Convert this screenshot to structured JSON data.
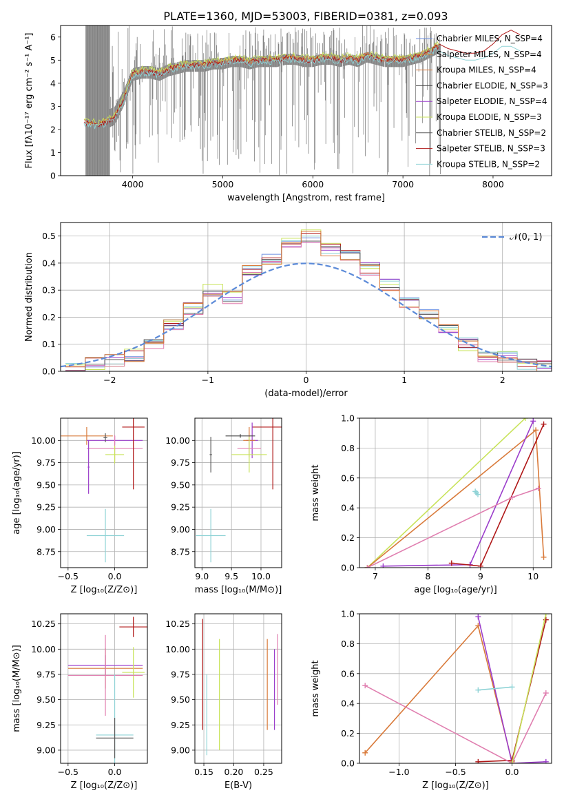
{
  "colors": {
    "chabrier_miles": "#6a8ee0",
    "salpeter_miles": "#e38a2d",
    "kroupa_miles": "#d97a3a",
    "chabrier_elodie": "#444444",
    "salpeter_elodie": "#9b3ecb",
    "kroupa_elodie": "#c8e35a",
    "chabrier_stelib": "#5a5a5a",
    "salpeter_stelib": "#b01818",
    "kroupa_stelib": "#8fd3d6",
    "pink": "#e07fb0",
    "gray": "#808080",
    "normal": "#5b8ad8"
  },
  "chart_data": [
    {
      "id": "spectrum",
      "type": "line",
      "title": "PLATE=1360, MJD=53003, FIBERID=0381, z=0.093",
      "xlabel": "wavelength [Angstrom, rest frame]",
      "ylabel": "Flux [fλ10⁻¹⁷ erg cm⁻² s⁻¹ A⁻¹]",
      "xlim": [
        3200,
        8650
      ],
      "ylim": [
        0,
        6.5
      ],
      "xticks": [
        4000,
        5000,
        6000,
        7000,
        8000
      ],
      "yticks": [
        0,
        1,
        2,
        3,
        4,
        5,
        6
      ],
      "grid": false,
      "legend_position": "top-right",
      "legend": [
        "Chabrier MILES, N_SSP=4",
        "Salpeter MILES, N_SSP=4",
        "Kroupa MILES, N_SSP=4",
        "Chabrier ELODIE, N_SSP=3",
        "Salpeter ELODIE, N_SSP=4",
        "Kroupa ELODIE, N_SSP=3",
        "Chabrier STELIB, N_SSP=2",
        "Salpeter STELIB, N_SSP=3",
        "Kroupa STELIB, N_SSP=2"
      ],
      "model_continuum": {
        "x": [
          3460,
          3600,
          3700,
          3800,
          3900,
          4000,
          4100,
          4200,
          4300,
          4400,
          4500,
          4600,
          4700,
          4800,
          4900,
          5000,
          5100,
          5200,
          5300,
          5400,
          5500,
          5600,
          5700,
          5800,
          5900,
          6000,
          6100,
          6200,
          6300,
          6400,
          6500,
          6600,
          6700,
          6800,
          6900,
          7000,
          7100,
          7200,
          7300,
          7400
        ],
        "y": [
          2.3,
          2.2,
          2.3,
          2.5,
          3.3,
          4.4,
          4.5,
          4.5,
          4.4,
          4.6,
          4.7,
          4.8,
          4.8,
          4.8,
          4.9,
          4.9,
          5.0,
          5.0,
          4.9,
          5.0,
          5.0,
          5.0,
          5.1,
          5.1,
          5.0,
          5.0,
          5.1,
          5.1,
          5.0,
          5.1,
          5.0,
          5.2,
          5.1,
          5.0,
          5.0,
          5.0,
          5.1,
          5.2,
          5.4,
          5.6
        ]
      },
      "red_extension": {
        "x": [
          7400,
          7500,
          7600,
          7700,
          7800,
          7900,
          8000,
          8100,
          8200,
          8300
        ],
        "y": [
          5.7,
          5.5,
          5.4,
          5.3,
          5.3,
          5.4,
          5.7,
          6.1,
          6.3,
          6.1
        ]
      },
      "cyan_extension": {
        "x": [
          7400,
          7500,
          7600,
          7700,
          7800,
          7900,
          8000,
          8100,
          8200,
          8300
        ],
        "y": [
          5.4,
          5.2,
          5.1,
          5.0,
          5.0,
          5.1,
          5.3,
          5.6,
          5.6,
          5.4
        ]
      }
    },
    {
      "id": "residuals",
      "type": "line",
      "xlabel": "(data-model)/error",
      "ylabel": "Normed distribution",
      "xlim": [
        -2.5,
        2.5
      ],
      "ylim": [
        0,
        0.55
      ],
      "xticks": [
        -2,
        -1,
        0,
        1,
        2
      ],
      "yticks": [
        0.0,
        0.1,
        0.2,
        0.3,
        0.4,
        0.5
      ],
      "grid": true,
      "legend_position": "top-right",
      "legend": [
        "𝒩(0, 1)"
      ],
      "histogram_centers": [
        -2.35,
        -2.15,
        -1.95,
        -1.75,
        -1.55,
        -1.35,
        -1.15,
        -0.95,
        -0.75,
        -0.55,
        -0.35,
        -0.15,
        0.05,
        0.25,
        0.45,
        0.65,
        0.85,
        1.05,
        1.25,
        1.45,
        1.65,
        1.85,
        2.05,
        2.25,
        2.45
      ],
      "histogram_values": [
        0.01,
        0.03,
        0.04,
        0.06,
        0.1,
        0.17,
        0.23,
        0.3,
        0.27,
        0.38,
        0.41,
        0.47,
        0.5,
        0.45,
        0.43,
        0.38,
        0.32,
        0.26,
        0.21,
        0.16,
        0.1,
        0.06,
        0.05,
        0.03,
        0.02
      ]
    },
    {
      "id": "age_vs_Z",
      "type": "scatter",
      "xlabel": "Z [log₁₀(Z/Z⊙)]",
      "ylabel": "age  [log₁₀(age/yr)]",
      "xlim": [
        -0.58,
        0.35
      ],
      "ylim": [
        8.57,
        10.25
      ],
      "xticks": [
        -0.5,
        0.0
      ],
      "yticks": [
        8.75,
        9.0,
        9.25,
        9.5,
        9.75,
        10.0
      ],
      "grid": true,
      "points": [
        {
          "color": "kroupa_miles",
          "x": -0.3,
          "y": 10.05,
          "xerr": 0.28,
          "yerr": 0.1
        },
        {
          "color": "salpeter_elodie",
          "x": 0.0,
          "y": 10.0,
          "xerr": 0.3,
          "yerr": 0.05
        },
        {
          "color": "pink",
          "x": 0.0,
          "y": 9.91,
          "xerr": 0.3,
          "yerr": 0.15
        },
        {
          "color": "kroupa_elodie",
          "x": 0.0,
          "y": 9.84,
          "xerr": 0.1,
          "yerr": 0.1
        },
        {
          "color": "salpeter_stelib",
          "x": 0.2,
          "y": 10.15,
          "xerr": 0.12,
          "yerr": 0.7
        },
        {
          "color": "kroupa_stelib",
          "x": -0.1,
          "y": 8.93,
          "xerr": 0.2,
          "yerr": 0.3
        },
        {
          "color": "chabrier_stelib",
          "x": -0.1,
          "y": 10.03,
          "xerr": 0.02,
          "yerr": 0.05
        },
        {
          "color": "salpeter_elodie",
          "x": -0.28,
          "y": 9.7,
          "xerr": 0.01,
          "yerr": 0.3
        }
      ]
    },
    {
      "id": "age_vs_mass",
      "type": "scatter",
      "xlabel": "mass [log₁₀(M/M⊙)]",
      "ylabel": "",
      "xlim": [
        8.88,
        10.35
      ],
      "ylim": [
        8.57,
        10.25
      ],
      "xticks": [
        9.0,
        9.5,
        10.0
      ],
      "yticks": [
        8.75,
        9.0,
        9.25,
        9.5,
        9.75,
        10.0
      ],
      "grid": true,
      "points": [
        {
          "color": "salpeter_stelib",
          "x": 10.2,
          "y": 10.15,
          "xerr": 0.35,
          "yerr": 0.7
        },
        {
          "color": "salpeter_elodie",
          "x": 9.85,
          "y": 10.0,
          "xerr": 0.1,
          "yerr": 0.2
        },
        {
          "color": "kroupa_miles",
          "x": 9.8,
          "y": 10.0,
          "xerr": 0.1,
          "yerr": 0.15
        },
        {
          "color": "pink",
          "x": 9.8,
          "y": 9.91,
          "xerr": 0.2,
          "yerr": 0.1
        },
        {
          "color": "kroupa_elodie",
          "x": 9.8,
          "y": 9.84,
          "xerr": 0.3,
          "yerr": 0.2
        },
        {
          "color": "chabrier_stelib",
          "x": 9.15,
          "y": 9.84,
          "xerr": 0.02,
          "yerr": 0.2
        },
        {
          "color": "kroupa_stelib",
          "x": 9.15,
          "y": 8.93,
          "xerr": 0.25,
          "yerr": 0.3
        },
        {
          "color": "chabrier_elodie",
          "x": 9.65,
          "y": 10.05,
          "xerr": 0.25,
          "yerr": 0.02
        }
      ]
    },
    {
      "id": "mass_weight_vs_age",
      "type": "line",
      "xlabel": "age  [log₁₀(age/yr)]",
      "ylabel": "mass weight",
      "xlim": [
        6.7,
        10.35
      ],
      "ylim": [
        0,
        1.0
      ],
      "xticks": [
        7,
        8,
        9,
        10
      ],
      "yticks": [
        0.0,
        0.2,
        0.4,
        0.6,
        0.8,
        1.0
      ],
      "grid": true,
      "series": [
        {
          "color": "kroupa_elodie",
          "x": [
            6.85,
            9.85,
            10.02
          ],
          "y": [
            0.0,
            1.0,
            1.02
          ]
        },
        {
          "color": "kroupa_miles",
          "x": [
            6.85,
            10.05,
            10.2
          ],
          "y": [
            0.0,
            0.92,
            0.07
          ]
        },
        {
          "color": "salpeter_elodie",
          "x": [
            7.15,
            8.8,
            10.0
          ],
          "y": [
            0.01,
            0.02,
            0.98
          ]
        },
        {
          "color": "salpeter_stelib",
          "x": [
            8.45,
            9.0,
            10.2
          ],
          "y": [
            0.03,
            0.01,
            0.96
          ]
        },
        {
          "color": "pink",
          "x": [
            6.85,
            9.6,
            10.1
          ],
          "y": [
            0.0,
            0.47,
            0.53
          ]
        },
        {
          "color": "kroupa_stelib",
          "x": [
            8.9,
            8.95,
            8.92
          ],
          "y": [
            0.51,
            0.49,
            0.5
          ]
        }
      ]
    },
    {
      "id": "mass_vs_Z",
      "type": "scatter",
      "xlabel": "Z [log₁₀(Z/Z⊙)]",
      "ylabel": "mass [log₁₀(M/M⊙)]",
      "xlim": [
        -0.58,
        0.35
      ],
      "ylim": [
        8.87,
        10.35
      ],
      "xticks": [
        -0.5,
        0.0
      ],
      "yticks": [
        9.0,
        9.25,
        9.5,
        9.75,
        10.0,
        10.25
      ],
      "grid": true,
      "points": [
        {
          "color": "salpeter_stelib",
          "x": 0.2,
          "y": 10.22,
          "xerr": 0.15,
          "yerr": 0.1
        },
        {
          "color": "salpeter_elodie",
          "x": -0.1,
          "y": 9.84,
          "xerr": 0.4,
          "yerr": 0.1
        },
        {
          "color": "kroupa_miles",
          "x": -0.1,
          "y": 9.81,
          "xerr": 0.4,
          "yerr": 0.2
        },
        {
          "color": "kroupa_elodie",
          "x": 0.2,
          "y": 9.77,
          "xerr": 0.12,
          "yerr": 0.25
        },
        {
          "color": "pink",
          "x": -0.1,
          "y": 9.74,
          "xerr": 0.4,
          "yerr": 0.4
        },
        {
          "color": "kroupa_stelib",
          "x": 0.0,
          "y": 9.15,
          "xerr": 0.2,
          "yerr": 0.6
        },
        {
          "color": "chabrier_stelib",
          "x": 0.0,
          "y": 9.12,
          "xerr": 0.2,
          "yerr": 0.2
        }
      ]
    },
    {
      "id": "mass_vs_EBV",
      "type": "scatter",
      "xlabel": "E(B-V)",
      "ylabel": "",
      "xlim": [
        0.135,
        0.28
      ],
      "ylim": [
        8.87,
        10.35
      ],
      "xticks": [
        0.15,
        0.2,
        0.25
      ],
      "yticks": [
        9.0,
        9.25,
        9.5,
        9.75,
        10.0,
        10.25
      ],
      "grid": true,
      "points": [
        {
          "color": "salpeter_stelib",
          "x": 0.148,
          "y": 9.75,
          "xerr": 0.0,
          "yerr": 0.55
        },
        {
          "color": "kroupa_stelib",
          "x": 0.155,
          "y": 9.35,
          "xerr": 0.0,
          "yerr": 0.4
        },
        {
          "color": "kroupa_elodie",
          "x": 0.176,
          "y": 9.55,
          "xerr": 0.0,
          "yerr": 0.55
        },
        {
          "color": "kroupa_miles",
          "x": 0.256,
          "y": 9.65,
          "xerr": 0.0,
          "yerr": 0.45
        },
        {
          "color": "salpeter_elodie",
          "x": 0.268,
          "y": 9.6,
          "xerr": 0.0,
          "yerr": 0.4
        },
        {
          "color": "pink",
          "x": 0.273,
          "y": 9.8,
          "xerr": 0.0,
          "yerr": 0.35
        }
      ]
    },
    {
      "id": "mass_weight_vs_Z",
      "type": "line",
      "xlabel": "Z [log₁₀(Z/Z⊙)]",
      "ylabel": "mass weight",
      "xlim": [
        -1.35,
        0.35
      ],
      "ylim": [
        0,
        1.0
      ],
      "xticks": [
        -1.0,
        -0.5,
        0.0
      ],
      "yticks": [
        0.0,
        0.2,
        0.4,
        0.6,
        0.8,
        1.0
      ],
      "grid": true,
      "series": [
        {
          "color": "kroupa_miles",
          "x": [
            -1.3,
            -0.3,
            0.0
          ],
          "y": [
            0.07,
            0.92,
            0.01
          ]
        },
        {
          "color": "salpeter_elodie",
          "x": [
            -0.3,
            0.0,
            0.3
          ],
          "y": [
            0.98,
            0.0,
            0.01
          ]
        },
        {
          "color": "salpeter_stelib",
          "x": [
            -0.3,
            0.0,
            0.3
          ],
          "y": [
            0.01,
            0.02,
            0.96
          ]
        },
        {
          "color": "pink",
          "x": [
            -1.3,
            0.0,
            0.3
          ],
          "y": [
            0.52,
            0.0,
            0.47
          ]
        },
        {
          "color": "kroupa_elodie",
          "x": [
            0.0,
            0.3
          ],
          "y": [
            0.0,
            1.0
          ]
        },
        {
          "color": "kroupa_stelib",
          "x": [
            -0.3,
            0.0
          ],
          "y": [
            0.49,
            0.51
          ]
        }
      ]
    }
  ]
}
